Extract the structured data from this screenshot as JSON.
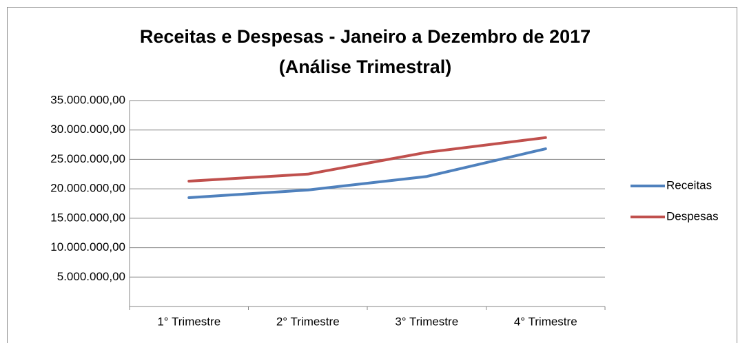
{
  "chart_data": {
    "type": "line",
    "title": [
      "Receitas e Despesas - Janeiro a Dezembro de 2017",
      "(Análise Trimestral)"
    ],
    "categories": [
      "1° Trimestre",
      "2° Trimestre",
      "3° Trimestre",
      "4° Trimestre"
    ],
    "series": [
      {
        "name": "Receitas",
        "color": "#4f81bd",
        "values": [
          18500000,
          19800000,
          22100000,
          26800000
        ]
      },
      {
        "name": "Despesas",
        "color": "#c0504d",
        "values": [
          21300000,
          22500000,
          26200000,
          28700000
        ]
      }
    ],
    "ylim": [
      0,
      35000000
    ],
    "yticks": [
      {
        "value": 5000000,
        "label": "5.000.000,00"
      },
      {
        "value": 10000000,
        "label": "10.000.000,00"
      },
      {
        "value": 15000000,
        "label": "15.000.000,00"
      },
      {
        "value": 20000000,
        "label": "20.000.000,00"
      },
      {
        "value": 25000000,
        "label": "25.000.000,00"
      },
      {
        "value": 30000000,
        "label": "30.000.000,00"
      },
      {
        "value": 35000000,
        "label": "35.000.000,00"
      }
    ],
    "grid": true,
    "legend": "right"
  }
}
